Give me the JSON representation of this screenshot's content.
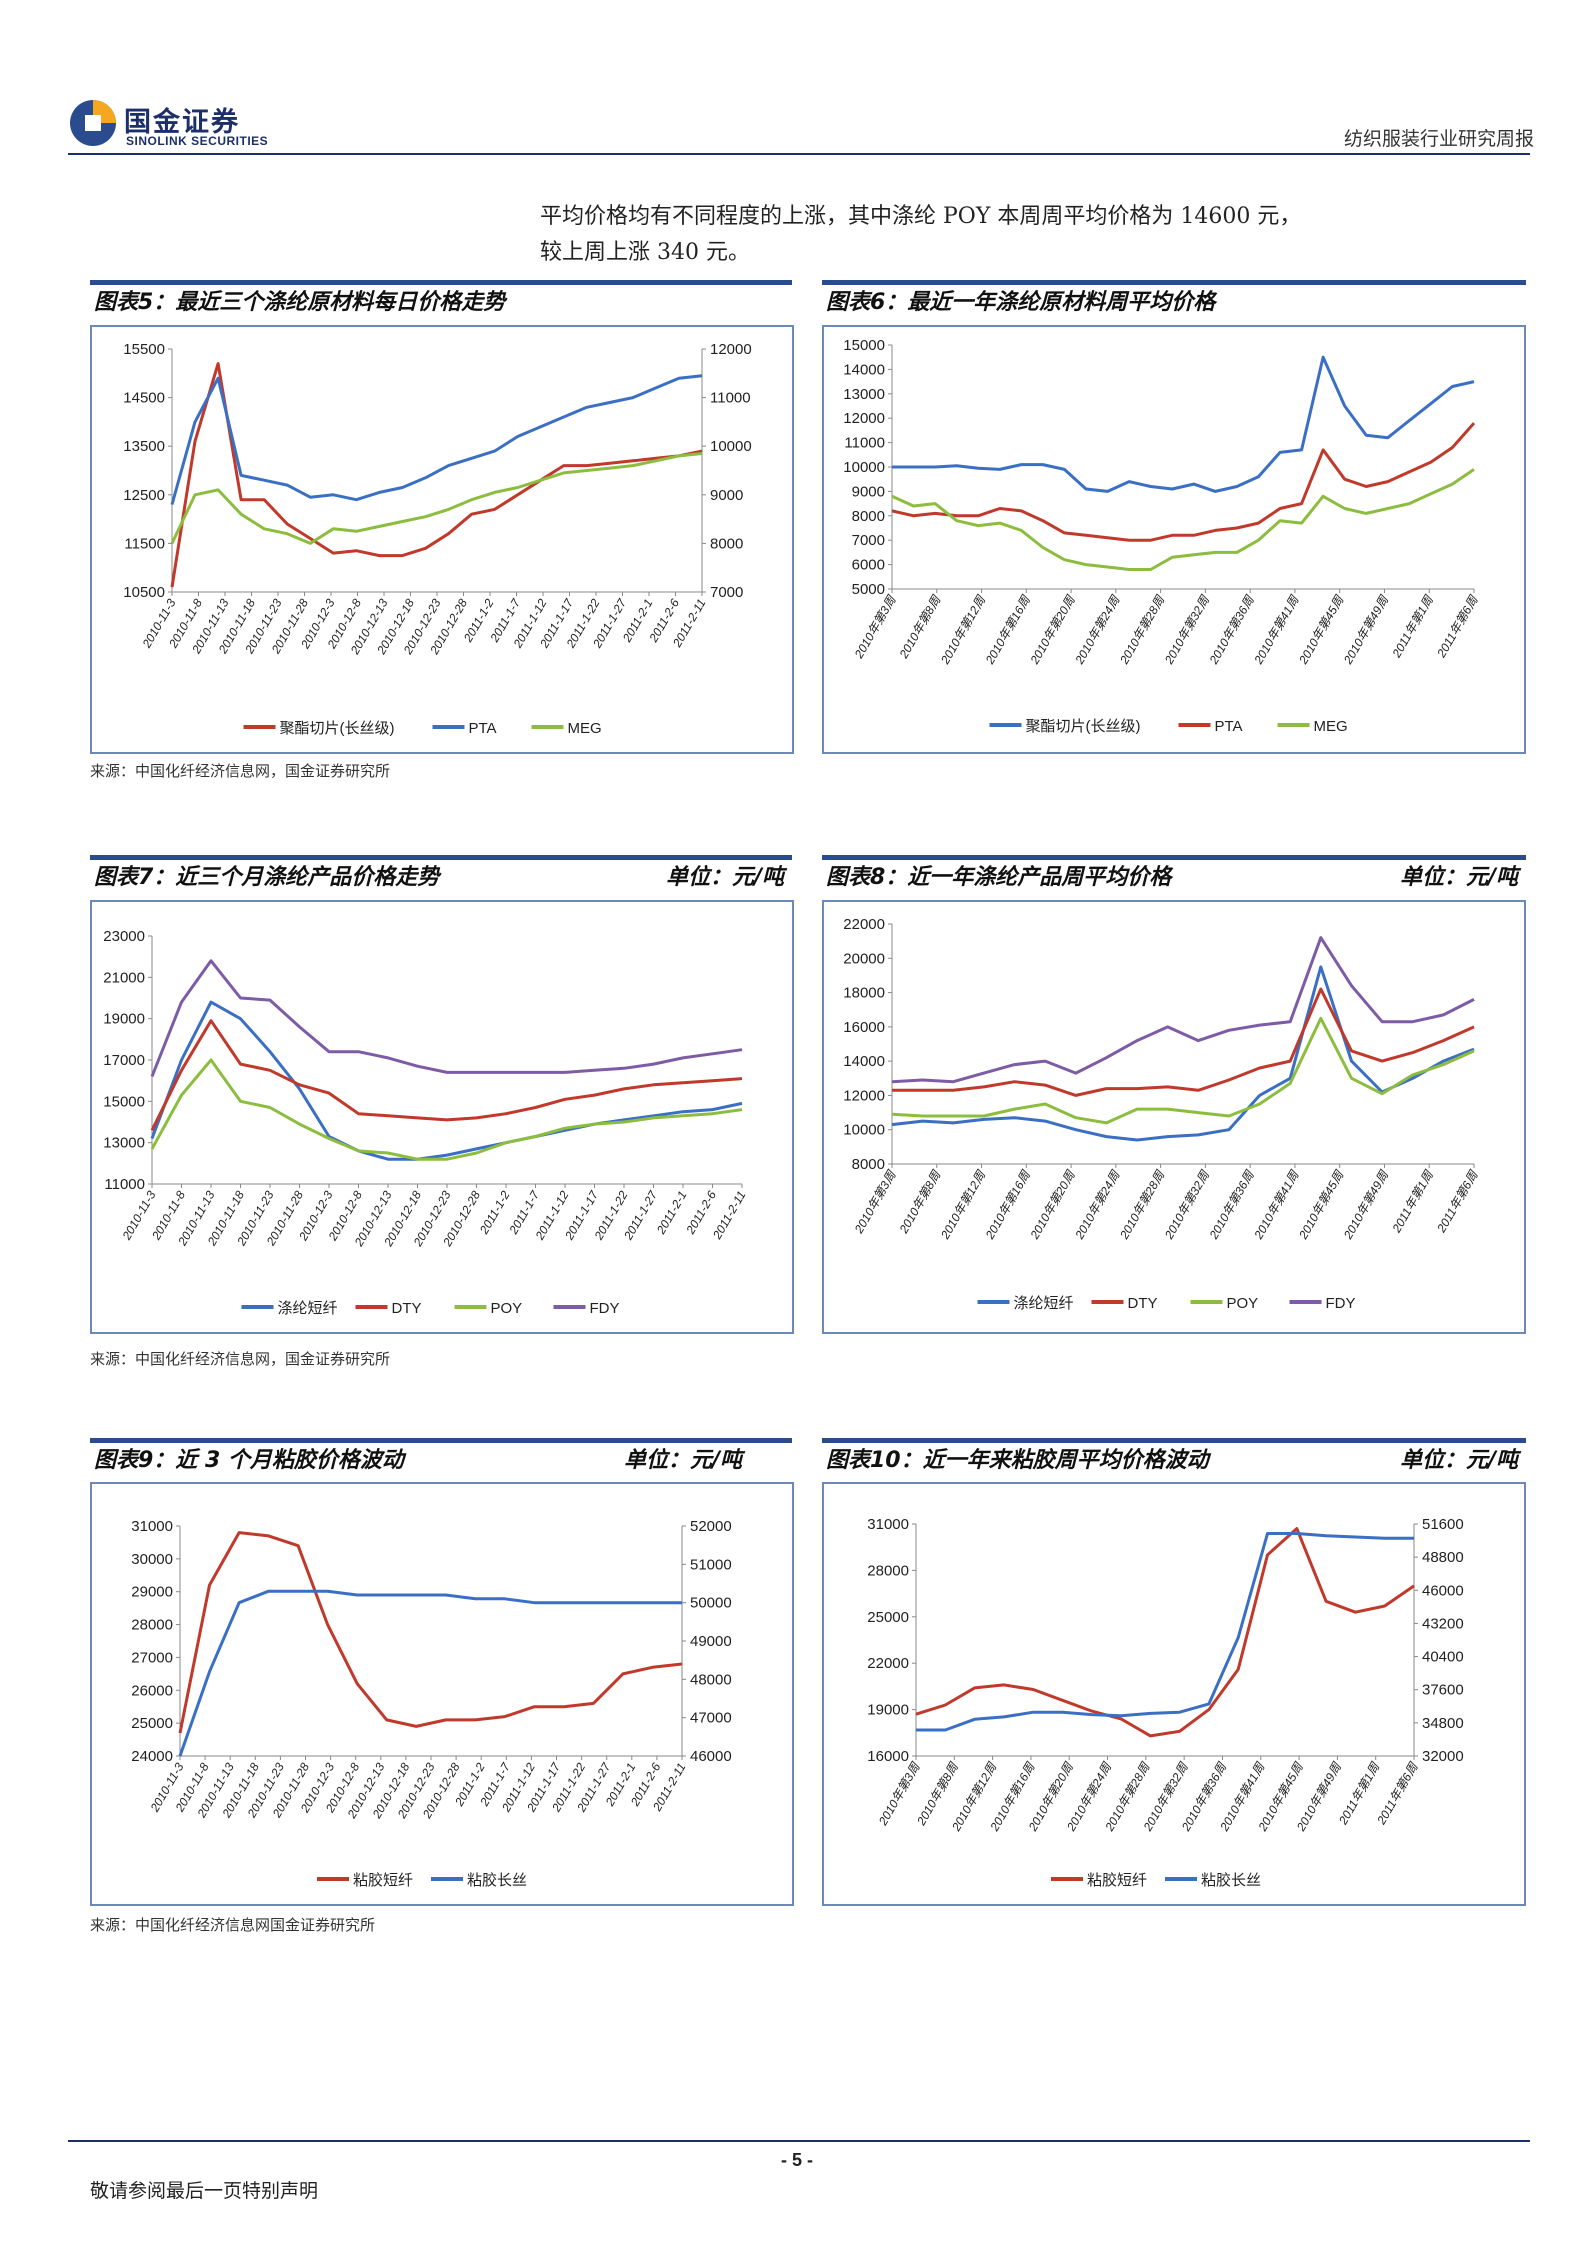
{
  "header": {
    "brand_cn": "国金证券",
    "brand_en": "SINOLINK SECURITIES",
    "report_type": "纺织服装行业研究周报"
  },
  "intro": {
    "line1": "平均价格均有不同程度的上涨，其中涤纶 POY 本周周平均价格为 14600 元，",
    "line2": "较上周上涨 340 元。"
  },
  "sections": {
    "fig5_title": "图表5：最近三个涤纶原材料每日价格走势",
    "fig6_title": "图表6：最近一年涤纶原材料周平均价格",
    "fig7_title": "图表7：近三个月涤纶产品价格走势",
    "fig8_title": "图表8：近一年涤纶产品周平均价格",
    "fig9_title": "图表9：近 3 个月粘胶价格波动",
    "fig10_title": "图表10：近一年来粘胶周平均价格波动",
    "unit": "单位：元/吨",
    "source_1": "来源：中国化纤经济信息网，国金证券研究所",
    "source_2": "来源：中国化纤经济信息网，国金证券研究所",
    "source_3": "来源：中国化纤经济信息网国金证券研究所"
  },
  "footer": {
    "page": "- 5 -",
    "disclaimer": "敬请参阅最后一页特别声明"
  },
  "chart_data": [
    {
      "id": "fig5",
      "type": "line",
      "x": [
        "2010-11-3",
        "2010-11-8",
        "2010-11-11",
        "2010-11-16",
        "2010-11-19",
        "2010-11-24",
        "2010-11-29",
        "2010-12-3",
        "2010-12-8",
        "2010-12-13",
        "2010-12-16",
        "2010-12-21",
        "2010-12-24",
        "2010-12-29",
        "2011-1-4",
        "2011-1-7",
        "2011-1-12",
        "2011-1-17",
        "2011-1-20",
        "2011-1-25",
        "2011-1-28",
        "2011-2-1",
        "2011-2-9",
        "2011-2-11"
      ],
      "x_tick_labels": [
        "2010-11-3",
        "2010-11-8",
        "2010-11-13",
        "2010-11-18",
        "2010-11-23",
        "2010-11-28",
        "2010-12-3",
        "2010-12-8",
        "2010-12-13",
        "2010-12-18",
        "2010-12-23",
        "2010-12-28",
        "2011-1-2",
        "2011-1-7",
        "2011-1-12",
        "2011-1-17",
        "2011-1-22",
        "2011-1-27",
        "2011-2-1",
        "2011-2-6",
        "2011-2-11"
      ],
      "ylim": [
        10500,
        15500
      ],
      "y2lim": [
        7000,
        12000
      ],
      "yticks": [
        10500,
        11500,
        12500,
        13500,
        14500,
        15500
      ],
      "y2ticks": [
        7000,
        8000,
        9000,
        10000,
        11000,
        12000
      ],
      "series": [
        {
          "name": "聚酯切片(长丝级)",
          "axis": "left",
          "color": "#c0392b",
          "values": [
            10600,
            13600,
            15200,
            12400,
            12400,
            11900,
            11600,
            11300,
            11350,
            11250,
            11250,
            11400,
            11700,
            12100,
            12200,
            12500,
            12800,
            13100,
            13100,
            13150,
            13200,
            13250,
            13300,
            13400
          ]
        },
        {
          "name": "PTA",
          "axis": "right",
          "color": "#3a6fc4",
          "values": [
            8800,
            10500,
            11400,
            9400,
            9300,
            9200,
            8950,
            9000,
            8900,
            9050,
            9150,
            9350,
            9600,
            9750,
            9900,
            10200,
            10400,
            10600,
            10800,
            10900,
            11000,
            11200,
            11400,
            11450
          ]
        },
        {
          "name": "MEG",
          "axis": "left",
          "color": "#8cbd3f",
          "values": [
            11500,
            12500,
            12600,
            12100,
            11800,
            11700,
            11500,
            11800,
            11750,
            11850,
            11950,
            12050,
            12200,
            12400,
            12550,
            12650,
            12800,
            12950,
            13000,
            13050,
            13100,
            13200,
            13300,
            13350
          ]
        }
      ]
    },
    {
      "id": "fig6",
      "type": "line",
      "x_tick_labels": [
        "2010年第3周",
        "2010年第8周",
        "2010年第12周",
        "2010年第16周",
        "2010年第20周",
        "2010年第24周",
        "2010年第28周",
        "2010年第32周",
        "2010年第36周",
        "2010年第41周",
        "2010年第45周",
        "2010年第49周",
        "2011年第1周",
        "2011年第6周"
      ],
      "ylim": [
        5000,
        15000
      ],
      "yticks": [
        5000,
        6000,
        7000,
        8000,
        9000,
        10000,
        11000,
        12000,
        13000,
        14000,
        15000
      ],
      "series": [
        {
          "name": "聚酯切片(长丝级)",
          "color": "#3a6fc4",
          "values": [
            10000,
            10000,
            10000,
            10050,
            9950,
            9900,
            10100,
            10100,
            9900,
            9100,
            9000,
            9400,
            9200,
            9100,
            9300,
            9000,
            9200,
            9600,
            10600,
            10700,
            14500,
            12500,
            11300,
            11200,
            11900,
            12600,
            13300,
            13500
          ]
        },
        {
          "name": "PTA",
          "color": "#c0392b",
          "values": [
            8200,
            8000,
            8100,
            8000,
            8000,
            8300,
            8200,
            7800,
            7300,
            7200,
            7100,
            7000,
            7000,
            7200,
            7200,
            7400,
            7500,
            7700,
            8300,
            8500,
            10700,
            9500,
            9200,
            9400,
            9800,
            10200,
            10800,
            11800
          ]
        },
        {
          "name": "MEG",
          "color": "#8cbd3f",
          "values": [
            8800,
            8400,
            8500,
            7800,
            7600,
            7700,
            7400,
            6700,
            6200,
            6000,
            5900,
            5800,
            5800,
            6300,
            6400,
            6500,
            6500,
            7000,
            7800,
            7700,
            8800,
            8300,
            8100,
            8300,
            8500,
            8900,
            9300,
            9900
          ]
        }
      ]
    },
    {
      "id": "fig7",
      "type": "line",
      "x_tick_labels": [
        "2010-11-3",
        "2010-11-8",
        "2010-11-13",
        "2010-11-18",
        "2010-11-23",
        "2010-11-28",
        "2010-12-3",
        "2010-12-8",
        "2010-12-13",
        "2010-12-18",
        "2010-12-23",
        "2010-12-28",
        "2011-1-2",
        "2011-1-7",
        "2011-1-12",
        "2011-1-17",
        "2011-1-22",
        "2011-1-27",
        "2011-2-1",
        "2011-2-6",
        "2011-2-11"
      ],
      "ylim": [
        11000,
        23000
      ],
      "yticks": [
        11000,
        13000,
        15000,
        17000,
        19000,
        21000,
        23000
      ],
      "series": [
        {
          "name": "涤纶短纤",
          "color": "#3a6fc4",
          "values": [
            13200,
            17000,
            19800,
            19000,
            17400,
            15600,
            13300,
            12600,
            12200,
            12200,
            12400,
            12700,
            13000,
            13300,
            13600,
            13900,
            14100,
            14300,
            14500,
            14600,
            14900
          ]
        },
        {
          "name": "DTY",
          "color": "#c0392b",
          "values": [
            13600,
            16500,
            18900,
            16800,
            16500,
            15800,
            15400,
            14400,
            14300,
            14200,
            14100,
            14200,
            14400,
            14700,
            15100,
            15300,
            15600,
            15800,
            15900,
            16000,
            16100
          ]
        },
        {
          "name": "POY",
          "color": "#8cbd3f",
          "values": [
            12700,
            15300,
            17000,
            15000,
            14700,
            13900,
            13200,
            12600,
            12500,
            12200,
            12200,
            12500,
            13000,
            13300,
            13700,
            13900,
            14000,
            14200,
            14300,
            14400,
            14600
          ]
        },
        {
          "name": "FDY",
          "color": "#7d5ba6",
          "values": [
            16200,
            19800,
            21800,
            20000,
            19900,
            18600,
            17400,
            17400,
            17100,
            16700,
            16400,
            16400,
            16400,
            16400,
            16400,
            16500,
            16600,
            16800,
            17100,
            17300,
            17500
          ]
        }
      ]
    },
    {
      "id": "fig8",
      "type": "line",
      "x_tick_labels": [
        "2010年第3周",
        "2010年第8周",
        "2010年第12周",
        "2010年第16周",
        "2010年第20周",
        "2010年第24周",
        "2010年第28周",
        "2010年第32周",
        "2010年第36周",
        "2010年第41周",
        "2010年第45周",
        "2010年第49周",
        "2011年第1周",
        "2011年第6周"
      ],
      "ylim": [
        8000,
        22000
      ],
      "yticks": [
        8000,
        10000,
        12000,
        14000,
        16000,
        18000,
        20000,
        22000
      ],
      "series": [
        {
          "name": "涤纶短纤",
          "color": "#3a6fc4",
          "values": [
            10300,
            10500,
            10400,
            10600,
            10700,
            10500,
            10000,
            9600,
            9400,
            9600,
            9700,
            10000,
            12000,
            13000,
            19500,
            14000,
            12200,
            13000,
            14000,
            14700
          ]
        },
        {
          "name": "DTY",
          "color": "#c0392b",
          "values": [
            12300,
            12300,
            12300,
            12500,
            12800,
            12600,
            12000,
            12400,
            12400,
            12500,
            12300,
            12900,
            13600,
            14000,
            18200,
            14600,
            14000,
            14500,
            15200,
            16000
          ]
        },
        {
          "name": "POY",
          "color": "#8cbd3f",
          "values": [
            10900,
            10800,
            10800,
            10800,
            11200,
            11500,
            10700,
            10400,
            11200,
            11200,
            11000,
            10800,
            11500,
            12700,
            16500,
            13000,
            12100,
            13200,
            13800,
            14600
          ]
        },
        {
          "name": "FDY",
          "color": "#7d5ba6",
          "values": [
            12800,
            12900,
            12800,
            13300,
            13800,
            14000,
            13300,
            14200,
            15200,
            16000,
            15200,
            15800,
            16100,
            16300,
            21200,
            18400,
            16300,
            16300,
            16700,
            17600
          ]
        }
      ]
    },
    {
      "id": "fig9",
      "type": "line",
      "x_tick_labels": [
        "2010-11-3",
        "2010-11-8",
        "2010-11-13",
        "2010-11-18",
        "2010-11-23",
        "2010-11-28",
        "2010-12-3",
        "2010-12-8",
        "2010-12-13",
        "2010-12-18",
        "2010-12-23",
        "2010-12-28",
        "2011-1-2",
        "2011-1-7",
        "2011-1-12",
        "2011-1-17",
        "2011-1-22",
        "2011-1-27",
        "2011-2-1",
        "2011-2-6",
        "2011-2-11"
      ],
      "ylim": [
        24000,
        31000
      ],
      "y2lim": [
        46000,
        52000
      ],
      "yticks": [
        24000,
        25000,
        26000,
        27000,
        28000,
        29000,
        30000,
        31000
      ],
      "y2ticks": [
        46000,
        47000,
        48000,
        49000,
        50000,
        51000,
        52000
      ],
      "series": [
        {
          "name": "粘胶短纤",
          "axis": "left",
          "color": "#c0392b",
          "values": [
            24700,
            29200,
            30800,
            30700,
            30400,
            28000,
            26200,
            25100,
            24900,
            25100,
            25100,
            25200,
            25500,
            25500,
            25600,
            26500,
            26700,
            26800
          ]
        },
        {
          "name": "粘胶长丝",
          "axis": "right",
          "color": "#3a6fc4",
          "values": [
            46000,
            48200,
            50000,
            50300,
            50300,
            50300,
            50200,
            50200,
            50200,
            50200,
            50100,
            50100,
            50000,
            50000,
            50000,
            50000,
            50000,
            50000
          ]
        }
      ]
    },
    {
      "id": "fig10",
      "type": "line",
      "x_tick_labels": [
        "2010年第3周",
        "2010年第8周",
        "2010年第12周",
        "2010年第16周",
        "2010年第20周",
        "2010年第24周",
        "2010年第28周",
        "2010年第32周",
        "2010年第36周",
        "2010年第41周",
        "2010年第45周",
        "2010年第49周",
        "2011年第1周",
        "2011年第6周"
      ],
      "ylim": [
        16000,
        31000
      ],
      "y2lim": [
        32000,
        51600
      ],
      "yticks": [
        16000,
        19000,
        22000,
        25000,
        28000,
        31000
      ],
      "y2ticks": [
        32000,
        34800,
        37600,
        40400,
        43200,
        46000,
        48800,
        51600
      ],
      "series": [
        {
          "name": "粘胶短纤",
          "axis": "left",
          "color": "#c0392b",
          "values": [
            18700,
            19300,
            20400,
            20600,
            20300,
            19600,
            18900,
            18400,
            17300,
            17600,
            19000,
            21600,
            29000,
            30700,
            26000,
            25300,
            25700,
            27000
          ]
        },
        {
          "name": "粘胶长丝",
          "axis": "right",
          "color": "#3a6fc4",
          "values": [
            34200,
            34200,
            35100,
            35300,
            35700,
            35700,
            35500,
            35400,
            35600,
            35700,
            36400,
            42000,
            50800,
            50800,
            50600,
            50500,
            50400,
            50400
          ]
        }
      ]
    }
  ]
}
